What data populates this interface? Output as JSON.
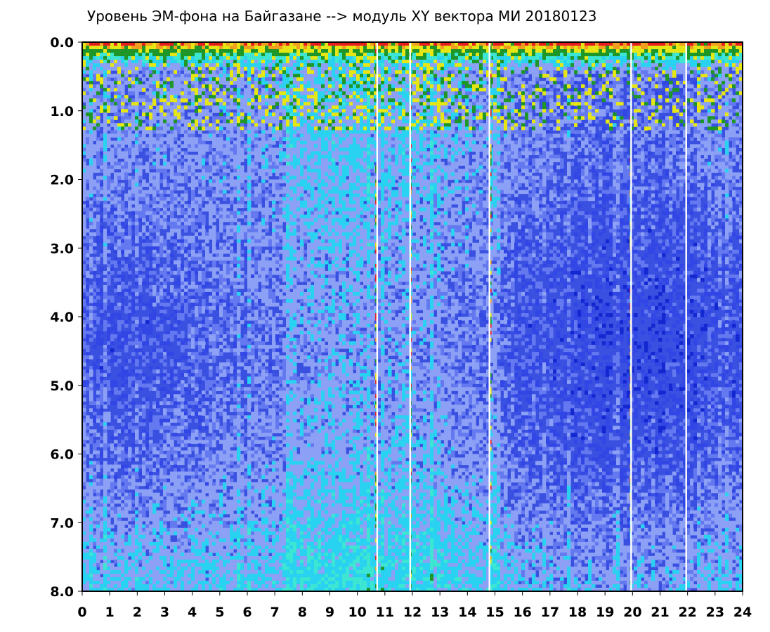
{
  "chart_data": {
    "type": "heatmap",
    "title": "Уровень ЭМ-фона на Байгазане  -->  модуль XY вектора МИ  20180123",
    "xlabel": "",
    "ylabel": "",
    "xlim": [
      0,
      24
    ],
    "ylim": [
      0.0,
      8.0
    ],
    "y_inverted": true,
    "x_ticks": [
      "0",
      "1",
      "2",
      "3",
      "4",
      "5",
      "6",
      "7",
      "8",
      "9",
      "10",
      "11",
      "12",
      "13",
      "14",
      "15",
      "16",
      "17",
      "18",
      "19",
      "20",
      "21",
      "22",
      "23",
      "24"
    ],
    "y_ticks": [
      "0.0",
      "1.0",
      "2.0",
      "3.0",
      "4.0",
      "5.0",
      "6.0",
      "7.0",
      "8.0"
    ],
    "grid": false,
    "colors": [
      "#1428d2",
      "#3246e6",
      "#6478f0",
      "#8ca0f5",
      "#28d2f0",
      "#3ce6d2",
      "#1e9628",
      "#e6e614",
      "#f0a01e",
      "#e61e1e"
    ],
    "gaps_x": [
      10.72,
      11.92,
      14.8,
      19.95,
      21.95
    ],
    "hot_columns_x": [
      10.7,
      11.95,
      14.85,
      19.95
    ]
  }
}
